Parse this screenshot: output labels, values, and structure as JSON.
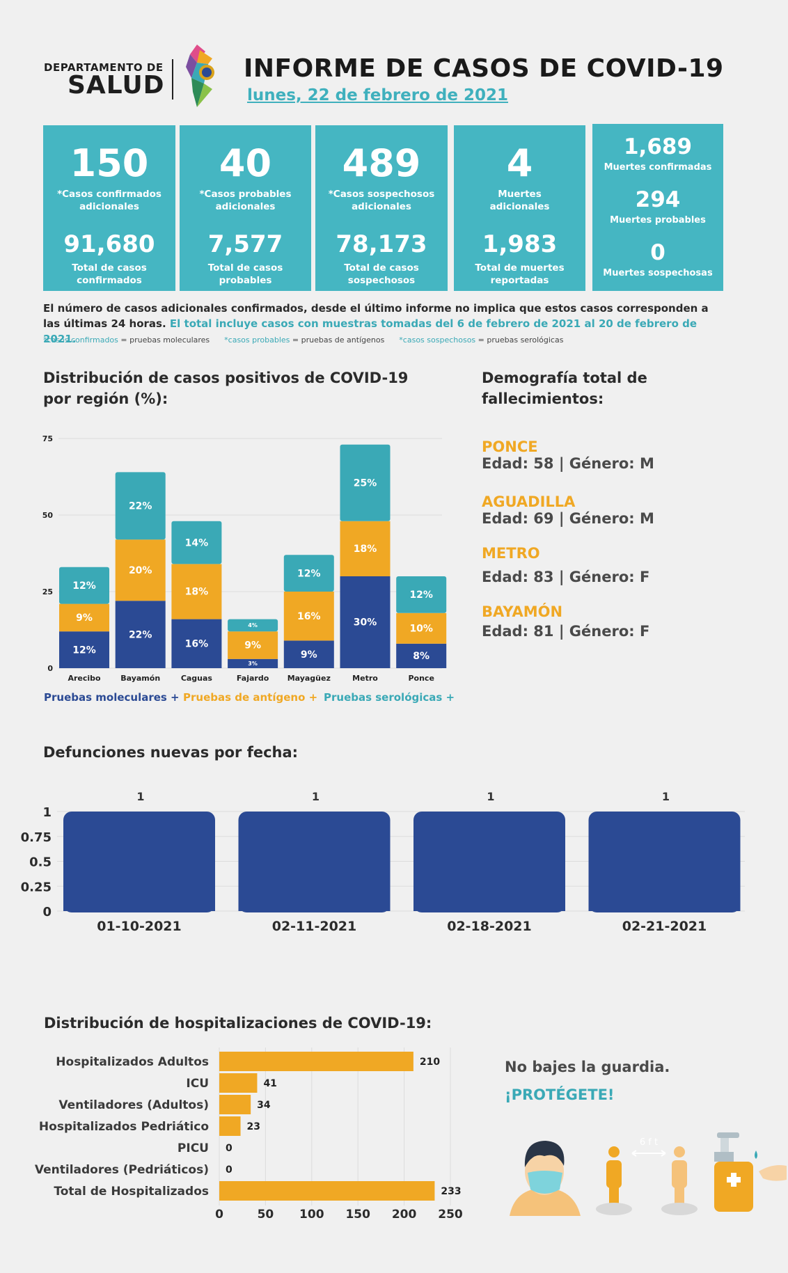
{
  "header": {
    "dept_small": "DEPARTAMENTO DE",
    "dept_big": "SALUD",
    "title": "INFORME DE CASOS DE COVID-19",
    "date": "lunes, 22 de febrero de 2021"
  },
  "cards": [
    {
      "big": "150",
      "label1": "*Casos confirmados",
      "label2": "adicionales",
      "total": "91,680",
      "tlabel1": "Total de casos",
      "tlabel2": "confirmados"
    },
    {
      "big": "40",
      "label1": "*Casos probables",
      "label2": "adicionales",
      "total": "7,577",
      "tlabel1": "Total de casos",
      "tlabel2": "probables"
    },
    {
      "big": "489",
      "label1": "*Casos sospechosos",
      "label2": "adicionales",
      "total": "78,173",
      "tlabel1": "Total de casos",
      "tlabel2": "sospechosos"
    },
    {
      "big": "4",
      "label1": "Muertes",
      "label2": "adicionales",
      "total": "1,983",
      "tlabel1": "Total de muertes",
      "tlabel2": "reportadas"
    }
  ],
  "deaths_card": {
    "confirmed": "1,689",
    "confirmed_label": "Muertes confirmadas",
    "probable": "294",
    "probable_label": "Muertes probables",
    "suspected": "0",
    "suspected_label": "Muertes sospechosas"
  },
  "note": {
    "text1": "El número de casos adicionales confirmados, desde el último informe no implica que estos casos corresponden a las últimas 24 horas.",
    "text2": "El total incluye casos con muestras tomadas del 6 de febrero de 2021 al 20 de febrero de 2021.",
    "leg1_c": "*casos confirmados",
    "leg1_t": "= pruebas moleculares",
    "leg2_c": "*casos probables",
    "leg2_t": "= pruebas de antígenos",
    "leg3_c": "*casos sospechosos",
    "leg3_t": "= pruebas serológicas"
  },
  "region_title_1": "Distribución de casos positivos de COVID-19",
  "region_title_2": "por región (%):",
  "demo_title_1": "Demografía total de",
  "demo_title_2": "fallecimientos:",
  "demographics": [
    {
      "region": "PONCE",
      "info": "Edad: 58 | Género: M"
    },
    {
      "region": "AGUADILLA",
      "info": "Edad: 69 | Género: M"
    },
    {
      "region": "METRO",
      "info": "Edad: 83 | Género: F"
    },
    {
      "region": "BAYAMÓN",
      "info": "Edad: 81 | Género: F"
    }
  ],
  "deaths_title": "Defunciones nuevas por fecha:",
  "hosp_title": "Distribución de hospitalizaciones de COVID-19:",
  "slogan_1": "No bajes la guardia.",
  "slogan_2": "¡PROTÉGETE!",
  "distance_label": "6 f t",
  "colors": {
    "molecular": "#2b4a94",
    "antigen": "#f0a824",
    "serologic": "#3aa9b6",
    "card": "#45b6c2"
  },
  "chart_data": [
    {
      "type": "bar",
      "stacked": true,
      "categories": [
        "Arecibo",
        "Bayamón",
        "Caguas",
        "Fajardo",
        "Mayagüez",
        "Metro",
        "Ponce"
      ],
      "series": [
        {
          "name": "Pruebas moleculares +",
          "values": [
            12,
            22,
            16,
            3,
            9,
            30,
            8
          ],
          "labels": [
            "12%",
            "22%",
            "16%",
            "3%",
            "9%",
            "30%",
            "8%"
          ]
        },
        {
          "name": "Pruebas de antígeno +",
          "values": [
            9,
            20,
            18,
            9,
            16,
            18,
            10
          ],
          "labels": [
            "9%",
            "20%",
            "18%",
            "9%",
            "16%",
            "18%",
            "10%"
          ]
        },
        {
          "name": "Pruebas serológicas +",
          "values": [
            12,
            22,
            14,
            4,
            12,
            25,
            12
          ],
          "labels": [
            "12%",
            "22%",
            "14%",
            "4%",
            "12%",
            "25%",
            "12%"
          ]
        }
      ],
      "yticks": [
        "0",
        "25",
        "50",
        "75"
      ],
      "ylim": [
        0,
        75
      ],
      "legend": "bottom"
    },
    {
      "type": "bar",
      "categories": [
        "01-10-2021",
        "02-11-2021",
        "02-18-2021",
        "02-21-2021"
      ],
      "values": [
        1,
        1,
        1,
        1
      ],
      "labels": [
        "1",
        "1",
        "1",
        "1"
      ],
      "yticks": [
        "0",
        "0.25",
        "0.5",
        "0.75",
        "1"
      ],
      "ylim": [
        0,
        1
      ]
    },
    {
      "type": "bar",
      "orientation": "horizontal",
      "categories": [
        "Hospitalizados Adultos",
        "ICU",
        "Ventiladores (Adultos)",
        "Hospitalizados Pedriático",
        "PICU",
        "Ventiladores (Pedriáticos)",
        "Total de Hospitalizados"
      ],
      "values": [
        210,
        41,
        34,
        23,
        0,
        0,
        233
      ],
      "labels": [
        "210",
        "41",
        "34",
        "23",
        "0",
        "0",
        "233"
      ],
      "xticks": [
        "0",
        "50",
        "100",
        "150",
        "200",
        "250"
      ],
      "xlim": [
        0,
        250
      ]
    }
  ]
}
